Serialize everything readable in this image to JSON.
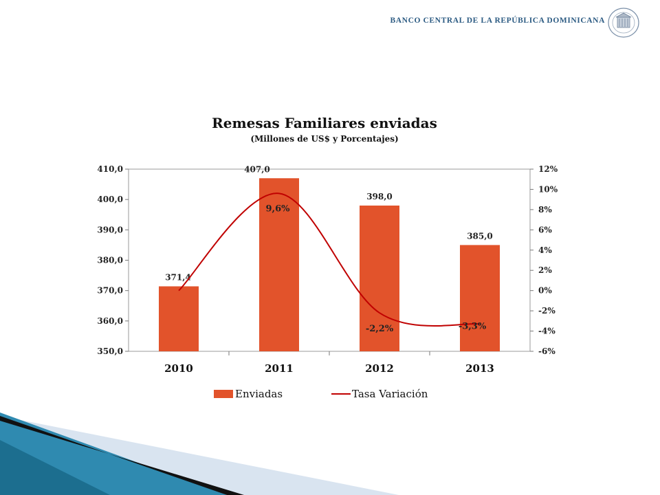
{
  "header": {
    "bank_name": "BANCO CENTRAL DE LA REPÚBLICA DOMINICANA",
    "logo_icon": "bank-seal-icon"
  },
  "colors": {
    "bar": "#e2532b",
    "line": "#c00000",
    "header": "#2b5a82"
  },
  "chart_data": {
    "type": "bar",
    "title": "Remesas Familiares enviadas",
    "subtitle": "(Millones de US$ y Porcentajes)",
    "categories": [
      "2010",
      "2011",
      "2012",
      "2013"
    ],
    "series": [
      {
        "name": "Enviadas",
        "type": "bar",
        "axis": "left",
        "values": [
          371.4,
          407.0,
          398.0,
          385.0
        ],
        "labels": [
          "371,4",
          "407,0",
          "398,0",
          "385,0"
        ]
      },
      {
        "name": "Tasa Variación",
        "type": "line",
        "axis": "right",
        "values": [
          0.0,
          9.6,
          -2.2,
          -3.3
        ],
        "labels": [
          "",
          "9,6%",
          "-2,2%",
          "-3,3%"
        ]
      }
    ],
    "ylim_left": [
      350,
      410
    ],
    "yticks_left": [
      "350,0",
      "360,0",
      "370,0",
      "380,0",
      "390,0",
      "400,0",
      "410,0"
    ],
    "ylim_right": [
      -6,
      12
    ],
    "yticks_right": [
      "-6%",
      "-4%",
      "-2%",
      "0%",
      "2%",
      "4%",
      "6%",
      "8%",
      "10%",
      "12%"
    ],
    "legend": "bottom",
    "grid": false
  }
}
